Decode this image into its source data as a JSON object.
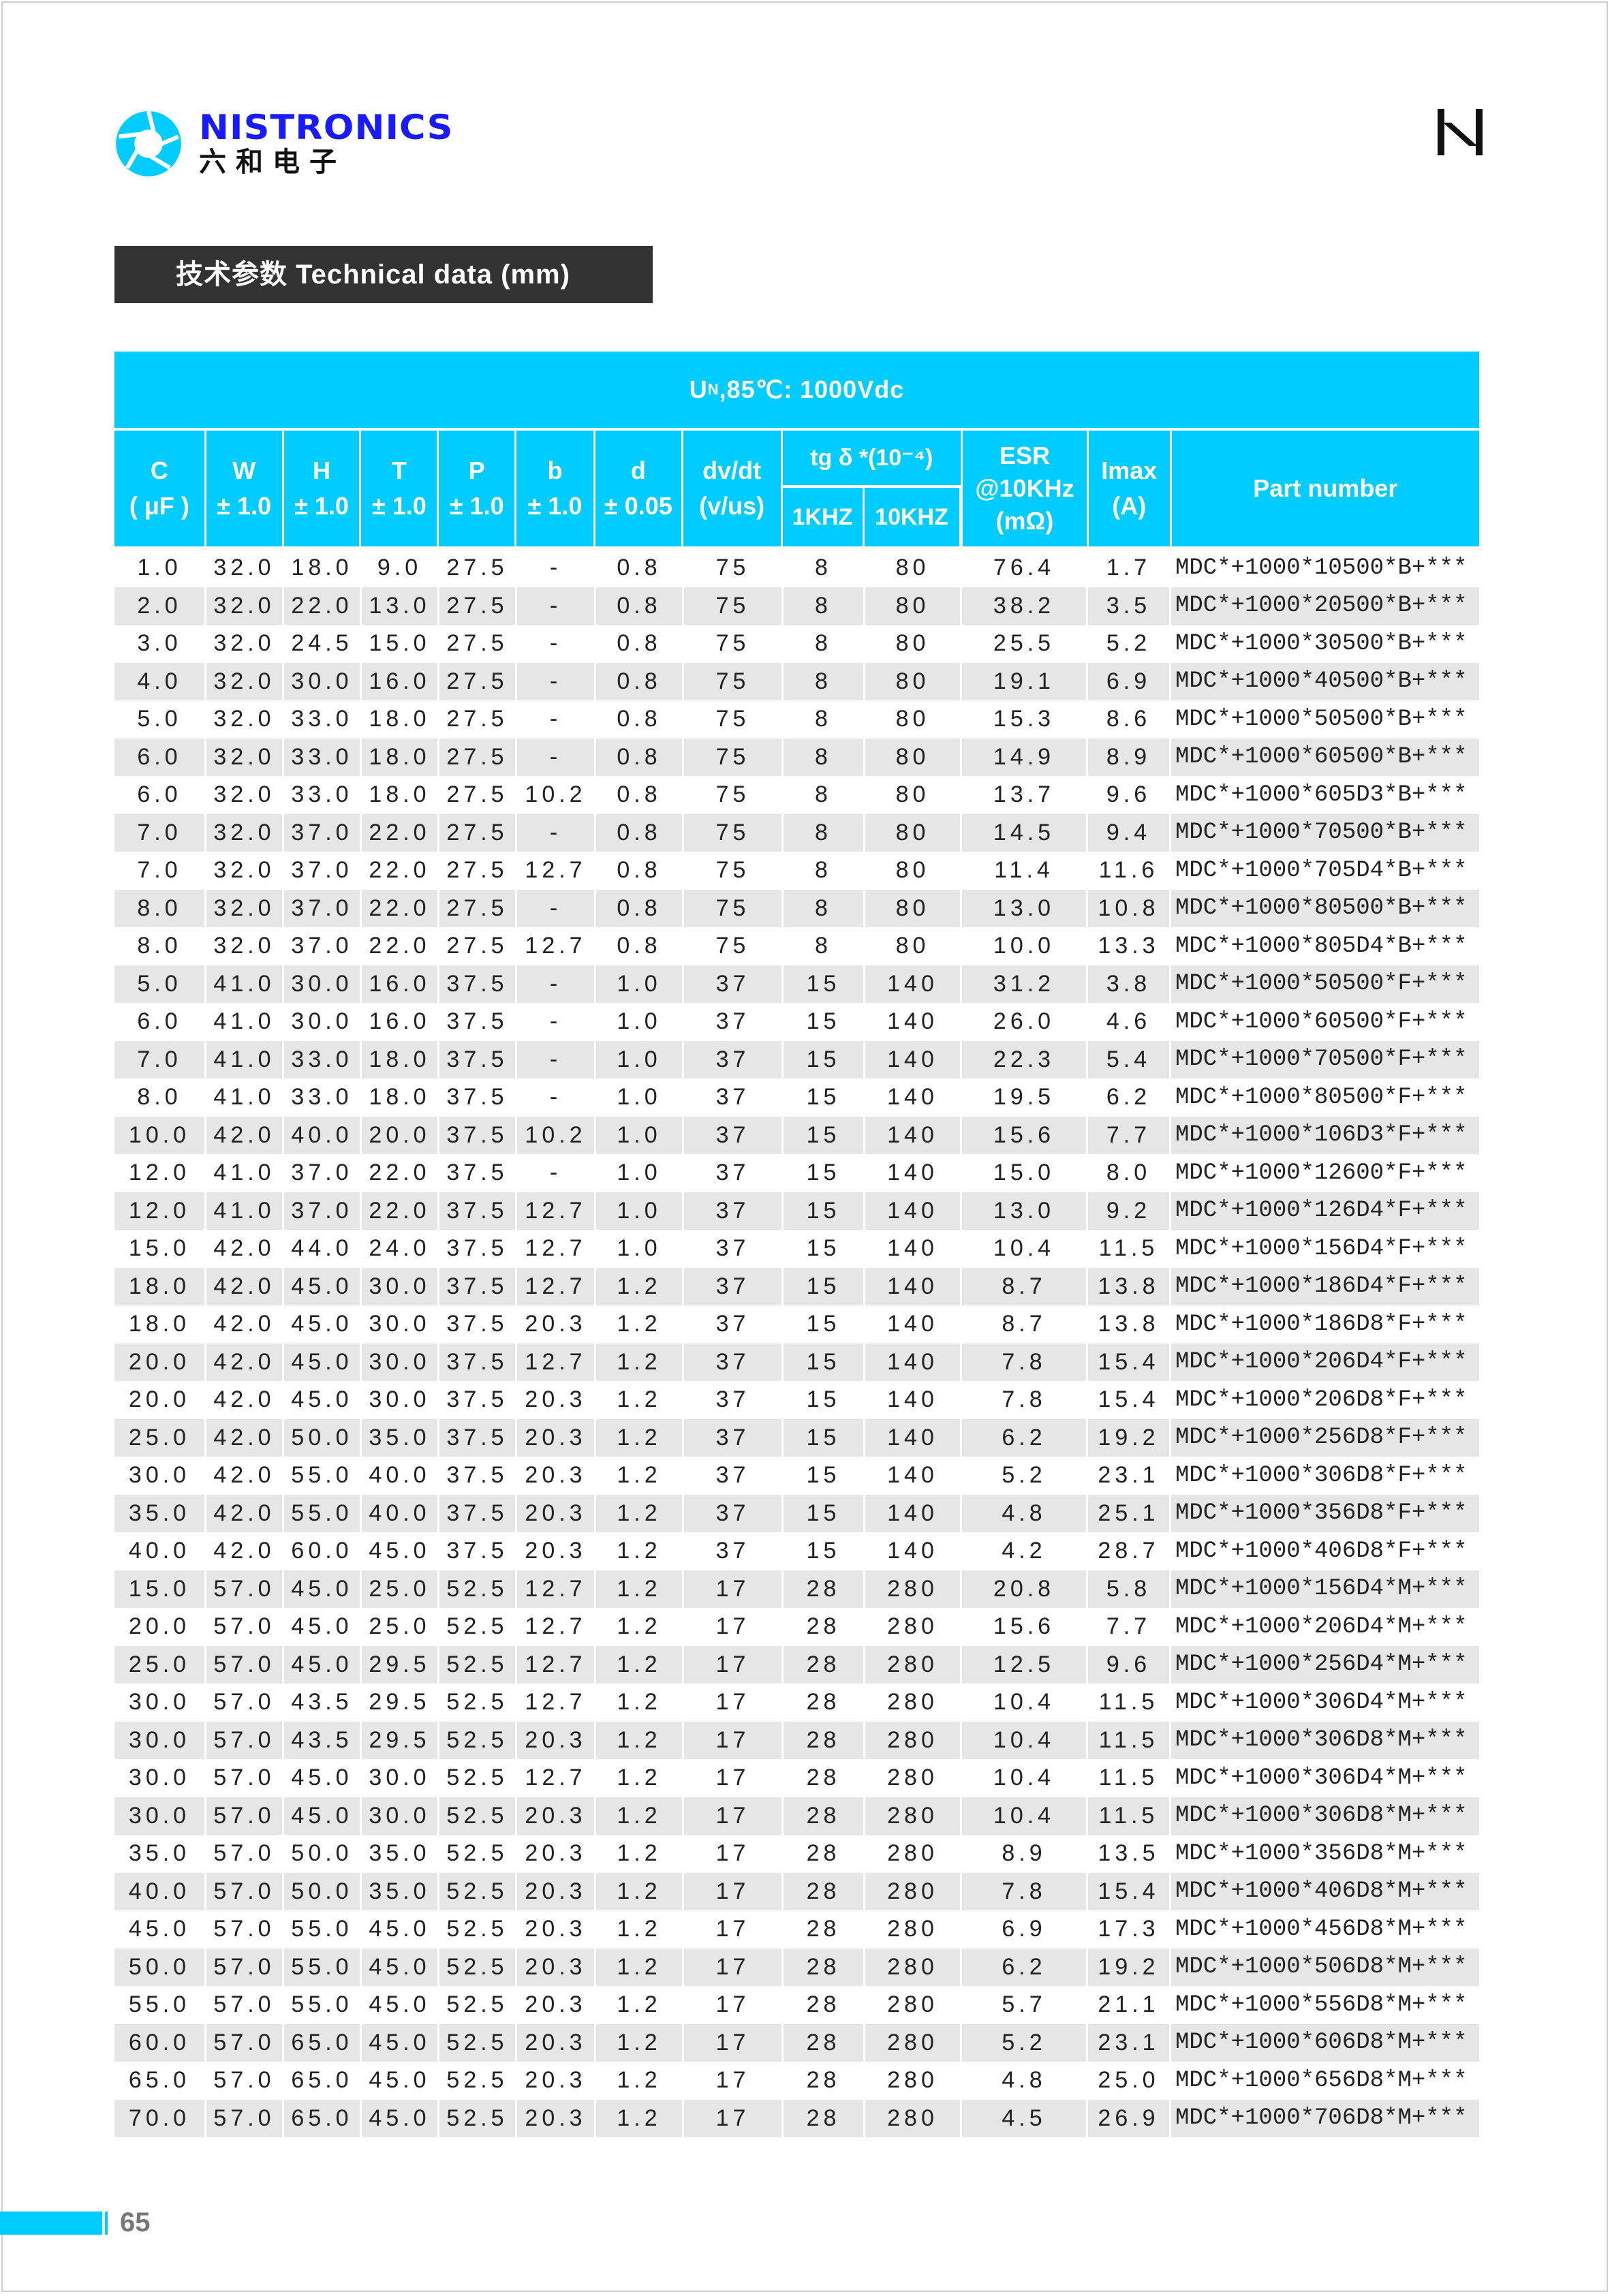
{
  "brand": {
    "name": "NISTRONICS",
    "name_cn": "六和电子"
  },
  "section_title": "技术参数 Technical data (mm)",
  "table": {
    "caption_prefix": "U",
    "caption_sub": "N",
    "caption_rest": ",85℃: 1000Vdc",
    "headers": [
      {
        "l1": "C",
        "l2": "( μF )"
      },
      {
        "l1": "W",
        "l2": "± 1.0"
      },
      {
        "l1": "H",
        "l2": "± 1.0"
      },
      {
        "l1": "T",
        "l2": "± 1.0"
      },
      {
        "l1": "P",
        "l2": "± 1.0"
      },
      {
        "l1": "b",
        "l2": "± 1.0"
      },
      {
        "l1": "d",
        "l2": "± 0.05"
      },
      {
        "l1": "dv/dt",
        "l2": "(v/us)"
      }
    ],
    "tg_header": "tg δ *(10⁻⁴)",
    "tg_sub": [
      "1KHZ",
      "10KHZ"
    ],
    "esr_header": {
      "l1": "ESR",
      "l2": "@10KHz",
      "l3": "(mΩ)"
    },
    "imax_header": {
      "l1": "Imax",
      "l2": "(A)"
    },
    "part_header": "Part number",
    "rows": [
      [
        "1.0",
        "32.0",
        "18.0",
        "9.0",
        "27.5",
        "-",
        "0.8",
        "75",
        "8",
        "80",
        "76.4",
        "1.7",
        "MDC*+1000*10500*B+***"
      ],
      [
        "2.0",
        "32.0",
        "22.0",
        "13.0",
        "27.5",
        "-",
        "0.8",
        "75",
        "8",
        "80",
        "38.2",
        "3.5",
        "MDC*+1000*20500*B+***"
      ],
      [
        "3.0",
        "32.0",
        "24.5",
        "15.0",
        "27.5",
        "-",
        "0.8",
        "75",
        "8",
        "80",
        "25.5",
        "5.2",
        "MDC*+1000*30500*B+***"
      ],
      [
        "4.0",
        "32.0",
        "30.0",
        "16.0",
        "27.5",
        "-",
        "0.8",
        "75",
        "8",
        "80",
        "19.1",
        "6.9",
        "MDC*+1000*40500*B+***"
      ],
      [
        "5.0",
        "32.0",
        "33.0",
        "18.0",
        "27.5",
        "-",
        "0.8",
        "75",
        "8",
        "80",
        "15.3",
        "8.6",
        "MDC*+1000*50500*B+***"
      ],
      [
        "6.0",
        "32.0",
        "33.0",
        "18.0",
        "27.5",
        "-",
        "0.8",
        "75",
        "8",
        "80",
        "14.9",
        "8.9",
        "MDC*+1000*60500*B+***"
      ],
      [
        "6.0",
        "32.0",
        "33.0",
        "18.0",
        "27.5",
        "10.2",
        "0.8",
        "75",
        "8",
        "80",
        "13.7",
        "9.6",
        "MDC*+1000*605D3*B+***"
      ],
      [
        "7.0",
        "32.0",
        "37.0",
        "22.0",
        "27.5",
        "-",
        "0.8",
        "75",
        "8",
        "80",
        "14.5",
        "9.4",
        "MDC*+1000*70500*B+***"
      ],
      [
        "7.0",
        "32.0",
        "37.0",
        "22.0",
        "27.5",
        "12.7",
        "0.8",
        "75",
        "8",
        "80",
        "11.4",
        "11.6",
        "MDC*+1000*705D4*B+***"
      ],
      [
        "8.0",
        "32.0",
        "37.0",
        "22.0",
        "27.5",
        "-",
        "0.8",
        "75",
        "8",
        "80",
        "13.0",
        "10.8",
        "MDC*+1000*80500*B+***"
      ],
      [
        "8.0",
        "32.0",
        "37.0",
        "22.0",
        "27.5",
        "12.7",
        "0.8",
        "75",
        "8",
        "80",
        "10.0",
        "13.3",
        "MDC*+1000*805D4*B+***"
      ],
      [
        "5.0",
        "41.0",
        "30.0",
        "16.0",
        "37.5",
        "-",
        "1.0",
        "37",
        "15",
        "140",
        "31.2",
        "3.8",
        "MDC*+1000*50500*F+***"
      ],
      [
        "6.0",
        "41.0",
        "30.0",
        "16.0",
        "37.5",
        "-",
        "1.0",
        "37",
        "15",
        "140",
        "26.0",
        "4.6",
        "MDC*+1000*60500*F+***"
      ],
      [
        "7.0",
        "41.0",
        "33.0",
        "18.0",
        "37.5",
        "-",
        "1.0",
        "37",
        "15",
        "140",
        "22.3",
        "5.4",
        "MDC*+1000*70500*F+***"
      ],
      [
        "8.0",
        "41.0",
        "33.0",
        "18.0",
        "37.5",
        "-",
        "1.0",
        "37",
        "15",
        "140",
        "19.5",
        "6.2",
        "MDC*+1000*80500*F+***"
      ],
      [
        "10.0",
        "42.0",
        "40.0",
        "20.0",
        "37.5",
        "10.2",
        "1.0",
        "37",
        "15",
        "140",
        "15.6",
        "7.7",
        "MDC*+1000*106D3*F+***"
      ],
      [
        "12.0",
        "41.0",
        "37.0",
        "22.0",
        "37.5",
        "-",
        "1.0",
        "37",
        "15",
        "140",
        "15.0",
        "8.0",
        "MDC*+1000*12600*F+***"
      ],
      [
        "12.0",
        "41.0",
        "37.0",
        "22.0",
        "37.5",
        "12.7",
        "1.0",
        "37",
        "15",
        "140",
        "13.0",
        "9.2",
        "MDC*+1000*126D4*F+***"
      ],
      [
        "15.0",
        "42.0",
        "44.0",
        "24.0",
        "37.5",
        "12.7",
        "1.0",
        "37",
        "15",
        "140",
        "10.4",
        "11.5",
        "MDC*+1000*156D4*F+***"
      ],
      [
        "18.0",
        "42.0",
        "45.0",
        "30.0",
        "37.5",
        "12.7",
        "1.2",
        "37",
        "15",
        "140",
        "8.7",
        "13.8",
        "MDC*+1000*186D4*F+***"
      ],
      [
        "18.0",
        "42.0",
        "45.0",
        "30.0",
        "37.5",
        "20.3",
        "1.2",
        "37",
        "15",
        "140",
        "8.7",
        "13.8",
        "MDC*+1000*186D8*F+***"
      ],
      [
        "20.0",
        "42.0",
        "45.0",
        "30.0",
        "37.5",
        "12.7",
        "1.2",
        "37",
        "15",
        "140",
        "7.8",
        "15.4",
        "MDC*+1000*206D4*F+***"
      ],
      [
        "20.0",
        "42.0",
        "45.0",
        "30.0",
        "37.5",
        "20.3",
        "1.2",
        "37",
        "15",
        "140",
        "7.8",
        "15.4",
        "MDC*+1000*206D8*F+***"
      ],
      [
        "25.0",
        "42.0",
        "50.0",
        "35.0",
        "37.5",
        "20.3",
        "1.2",
        "37",
        "15",
        "140",
        "6.2",
        "19.2",
        "MDC*+1000*256D8*F+***"
      ],
      [
        "30.0",
        "42.0",
        "55.0",
        "40.0",
        "37.5",
        "20.3",
        "1.2",
        "37",
        "15",
        "140",
        "5.2",
        "23.1",
        "MDC*+1000*306D8*F+***"
      ],
      [
        "35.0",
        "42.0",
        "55.0",
        "40.0",
        "37.5",
        "20.3",
        "1.2",
        "37",
        "15",
        "140",
        "4.8",
        "25.1",
        "MDC*+1000*356D8*F+***"
      ],
      [
        "40.0",
        "42.0",
        "60.0",
        "45.0",
        "37.5",
        "20.3",
        "1.2",
        "37",
        "15",
        "140",
        "4.2",
        "28.7",
        "MDC*+1000*406D8*F+***"
      ],
      [
        "15.0",
        "57.0",
        "45.0",
        "25.0",
        "52.5",
        "12.7",
        "1.2",
        "17",
        "28",
        "280",
        "20.8",
        "5.8",
        "MDC*+1000*156D4*M+***"
      ],
      [
        "20.0",
        "57.0",
        "45.0",
        "25.0",
        "52.5",
        "12.7",
        "1.2",
        "17",
        "28",
        "280",
        "15.6",
        "7.7",
        "MDC*+1000*206D4*M+***"
      ],
      [
        "25.0",
        "57.0",
        "45.0",
        "29.5",
        "52.5",
        "12.7",
        "1.2",
        "17",
        "28",
        "280",
        "12.5",
        "9.6",
        "MDC*+1000*256D4*M+***"
      ],
      [
        "30.0",
        "57.0",
        "43.5",
        "29.5",
        "52.5",
        "12.7",
        "1.2",
        "17",
        "28",
        "280",
        "10.4",
        "11.5",
        "MDC*+1000*306D4*M+***"
      ],
      [
        "30.0",
        "57.0",
        "43.5",
        "29.5",
        "52.5",
        "20.3",
        "1.2",
        "17",
        "28",
        "280",
        "10.4",
        "11.5",
        "MDC*+1000*306D8*M+***"
      ],
      [
        "30.0",
        "57.0",
        "45.0",
        "30.0",
        "52.5",
        "12.7",
        "1.2",
        "17",
        "28",
        "280",
        "10.4",
        "11.5",
        "MDC*+1000*306D4*M+***"
      ],
      [
        "30.0",
        "57.0",
        "45.0",
        "30.0",
        "52.5",
        "20.3",
        "1.2",
        "17",
        "28",
        "280",
        "10.4",
        "11.5",
        "MDC*+1000*306D8*M+***"
      ],
      [
        "35.0",
        "57.0",
        "50.0",
        "35.0",
        "52.5",
        "20.3",
        "1.2",
        "17",
        "28",
        "280",
        "8.9",
        "13.5",
        "MDC*+1000*356D8*M+***"
      ],
      [
        "40.0",
        "57.0",
        "50.0",
        "35.0",
        "52.5",
        "20.3",
        "1.2",
        "17",
        "28",
        "280",
        "7.8",
        "15.4",
        "MDC*+1000*406D8*M+***"
      ],
      [
        "45.0",
        "57.0",
        "55.0",
        "45.0",
        "52.5",
        "20.3",
        "1.2",
        "17",
        "28",
        "280",
        "6.9",
        "17.3",
        "MDC*+1000*456D8*M+***"
      ],
      [
        "50.0",
        "57.0",
        "55.0",
        "45.0",
        "52.5",
        "20.3",
        "1.2",
        "17",
        "28",
        "280",
        "6.2",
        "19.2",
        "MDC*+1000*506D8*M+***"
      ],
      [
        "55.0",
        "57.0",
        "55.0",
        "45.0",
        "52.5",
        "20.3",
        "1.2",
        "17",
        "28",
        "280",
        "5.7",
        "21.1",
        "MDC*+1000*556D8*M+***"
      ],
      [
        "60.0",
        "57.0",
        "65.0",
        "45.0",
        "52.5",
        "20.3",
        "1.2",
        "17",
        "28",
        "280",
        "5.2",
        "23.1",
        "MDC*+1000*606D8*M+***"
      ],
      [
        "65.0",
        "57.0",
        "65.0",
        "45.0",
        "52.5",
        "20.3",
        "1.2",
        "17",
        "28",
        "280",
        "4.8",
        "25.0",
        "MDC*+1000*656D8*M+***"
      ],
      [
        "70.0",
        "57.0",
        "65.0",
        "45.0",
        "52.5",
        "20.3",
        "1.2",
        "17",
        "28",
        "280",
        "4.5",
        "26.9",
        "MDC*+1000*706D8*M+***"
      ]
    ]
  },
  "footer": {
    "page_number": "65"
  },
  "colors": {
    "accent": "#00ccff",
    "brand_blue": "#1a1aff",
    "title_bg": "#333333",
    "row_alt": "#e6e6e6"
  }
}
